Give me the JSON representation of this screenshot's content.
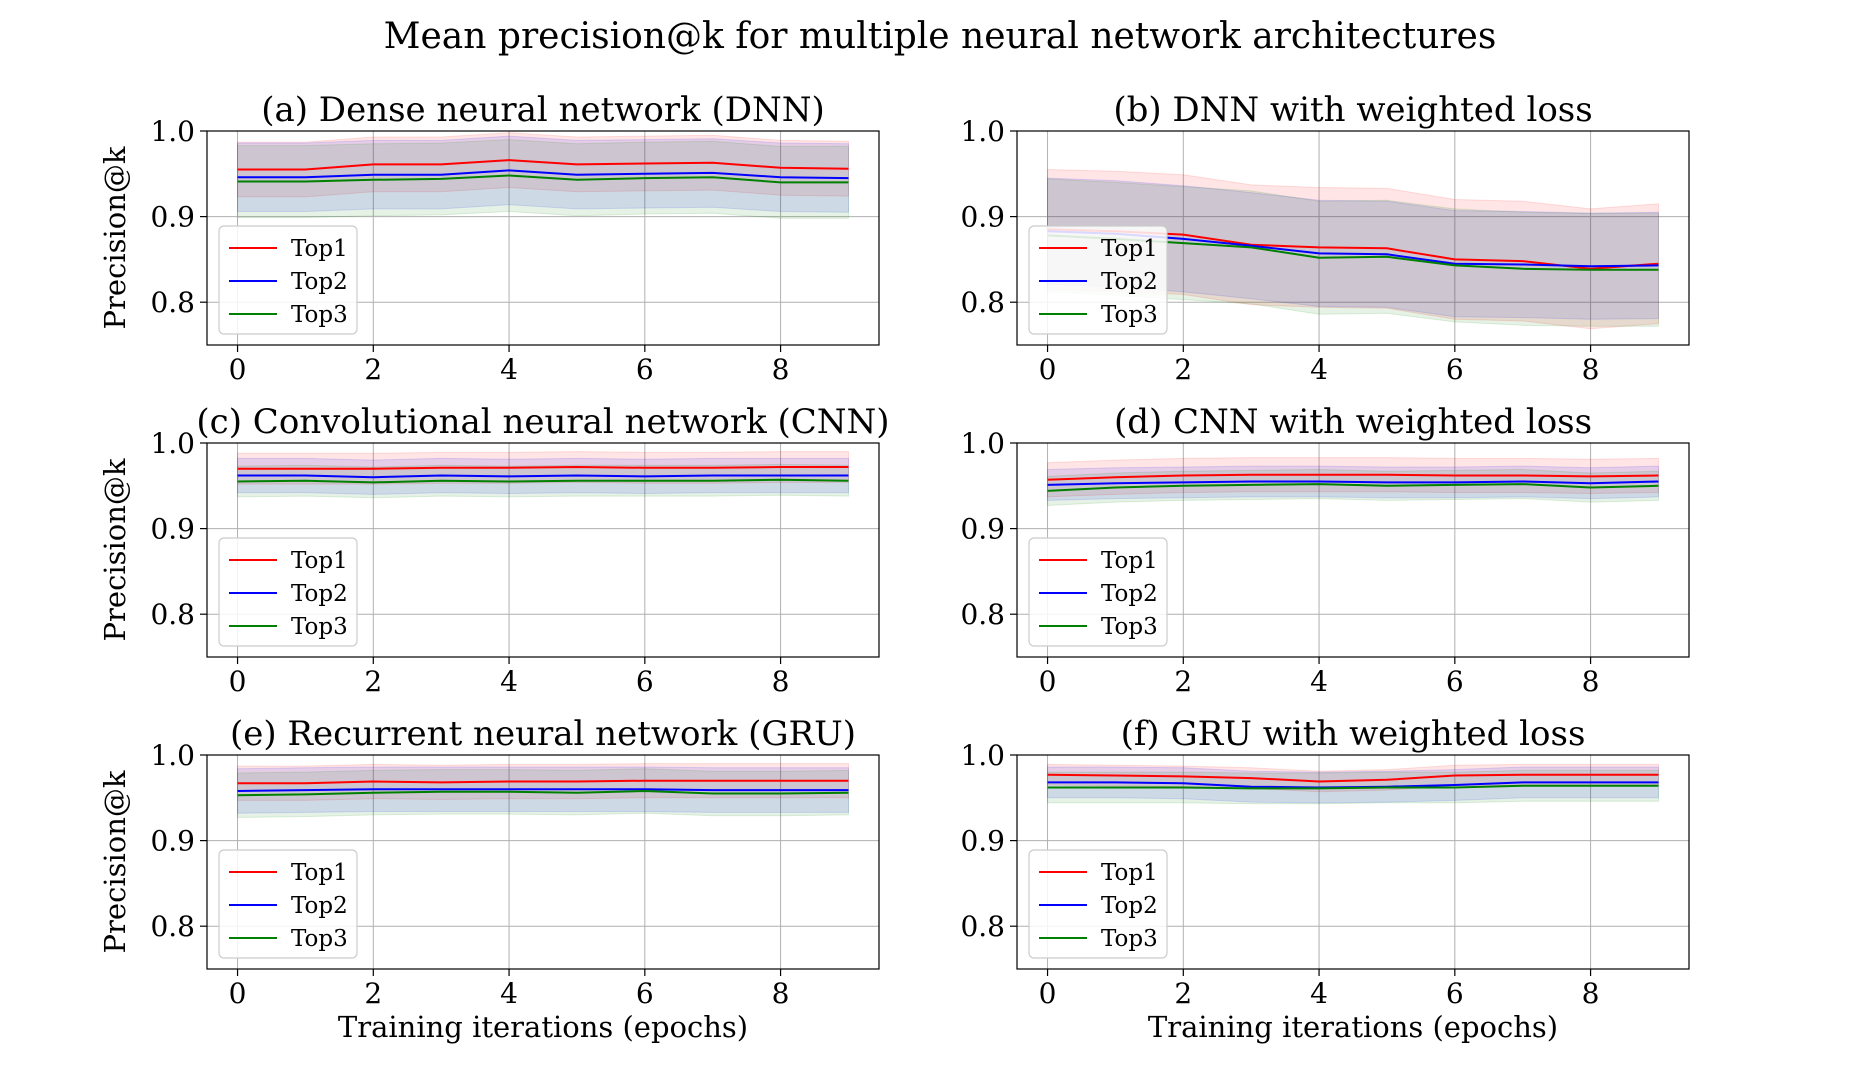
{
  "title": "Mean precision@k for multiple neural network architectures",
  "colors": {
    "Top1": "#ff0000",
    "Top2": "#0000ff",
    "Top3": "#008000",
    "grid": "#b0b0b0"
  },
  "chart_data": [
    {
      "type": "line",
      "title": "(a) Dense neural network (DNN)",
      "xlabel": "",
      "ylabel": "Precision@k",
      "x": [
        0,
        1,
        2,
        3,
        4,
        5,
        6,
        7,
        8,
        9
      ],
      "xticks": [
        "0",
        "2",
        "4",
        "6",
        "8"
      ],
      "yticks": [
        "0.8",
        "0.9",
        "1.0"
      ],
      "xlim": [
        -0.45,
        9.45
      ],
      "ylim": [
        0.75,
        1.0
      ],
      "grid": true,
      "legend": "lower-left",
      "series": [
        {
          "name": "Top1",
          "values": [
            0.955,
            0.955,
            0.961,
            0.961,
            0.966,
            0.961,
            0.962,
            0.963,
            0.957,
            0.956
          ],
          "band": 0.032
        },
        {
          "name": "Top2",
          "values": [
            0.946,
            0.946,
            0.949,
            0.949,
            0.954,
            0.949,
            0.95,
            0.951,
            0.946,
            0.945
          ],
          "band": 0.04
        },
        {
          "name": "Top3",
          "values": [
            0.941,
            0.941,
            0.943,
            0.944,
            0.948,
            0.943,
            0.945,
            0.946,
            0.94,
            0.94
          ],
          "band": 0.042
        }
      ]
    },
    {
      "type": "line",
      "title": "(b) DNN with weighted loss",
      "xlabel": "",
      "ylabel": "",
      "x": [
        0,
        1,
        2,
        3,
        4,
        5,
        6,
        7,
        8,
        9
      ],
      "xticks": [
        "0",
        "2",
        "4",
        "6",
        "8"
      ],
      "yticks": [
        "0.8",
        "0.9",
        "1.0"
      ],
      "xlim": [
        -0.45,
        9.45
      ],
      "ylim": [
        0.75,
        1.0
      ],
      "grid": true,
      "legend": "lower-left",
      "series": [
        {
          "name": "Top1",
          "values": [
            0.885,
            0.883,
            0.879,
            0.867,
            0.864,
            0.863,
            0.85,
            0.848,
            0.839,
            0.845
          ],
          "band": 0.07
        },
        {
          "name": "Top2",
          "values": [
            0.883,
            0.88,
            0.874,
            0.866,
            0.857,
            0.856,
            0.845,
            0.844,
            0.842,
            0.843
          ],
          "band": 0.062
        },
        {
          "name": "Top3",
          "values": [
            0.878,
            0.874,
            0.869,
            0.864,
            0.852,
            0.853,
            0.843,
            0.839,
            0.838,
            0.838
          ],
          "band": 0.066
        }
      ]
    },
    {
      "type": "line",
      "title": "(c) Convolutional neural network (CNN)",
      "xlabel": "",
      "ylabel": "Precision@k",
      "x": [
        0,
        1,
        2,
        3,
        4,
        5,
        6,
        7,
        8,
        9
      ],
      "xticks": [
        "0",
        "2",
        "4",
        "6",
        "8"
      ],
      "yticks": [
        "0.8",
        "0.9",
        "1.0"
      ],
      "xlim": [
        -0.45,
        9.45
      ],
      "ylim": [
        0.75,
        1.0
      ],
      "grid": true,
      "legend": "lower-left",
      "series": [
        {
          "name": "Top1",
          "values": [
            0.97,
            0.97,
            0.97,
            0.971,
            0.971,
            0.972,
            0.971,
            0.971,
            0.972,
            0.972
          ],
          "band": 0.018
        },
        {
          "name": "Top2",
          "values": [
            0.962,
            0.962,
            0.96,
            0.962,
            0.961,
            0.962,
            0.961,
            0.962,
            0.962,
            0.962
          ],
          "band": 0.02
        },
        {
          "name": "Top3",
          "values": [
            0.955,
            0.956,
            0.954,
            0.956,
            0.955,
            0.956,
            0.956,
            0.956,
            0.957,
            0.956
          ],
          "band": 0.018
        }
      ]
    },
    {
      "type": "line",
      "title": "(d) CNN with weighted loss",
      "xlabel": "",
      "ylabel": "",
      "x": [
        0,
        1,
        2,
        3,
        4,
        5,
        6,
        7,
        8,
        9
      ],
      "xticks": [
        "0",
        "2",
        "4",
        "6",
        "8"
      ],
      "yticks": [
        "0.8",
        "0.9",
        "1.0"
      ],
      "xlim": [
        -0.45,
        9.45
      ],
      "ylim": [
        0.75,
        1.0
      ],
      "grid": true,
      "legend": "lower-left",
      "series": [
        {
          "name": "Top1",
          "values": [
            0.957,
            0.96,
            0.962,
            0.963,
            0.963,
            0.963,
            0.962,
            0.962,
            0.961,
            0.962
          ],
          "band": 0.02
        },
        {
          "name": "Top2",
          "values": [
            0.951,
            0.953,
            0.954,
            0.955,
            0.955,
            0.954,
            0.954,
            0.955,
            0.953,
            0.955
          ],
          "band": 0.018
        },
        {
          "name": "Top3",
          "values": [
            0.944,
            0.948,
            0.95,
            0.951,
            0.952,
            0.95,
            0.951,
            0.952,
            0.948,
            0.95
          ],
          "band": 0.017
        }
      ]
    },
    {
      "type": "line",
      "title": "(e) Recurrent neural network (GRU)",
      "xlabel": "Training iterations (epochs)",
      "ylabel": "Precision@k",
      "x": [
        0,
        1,
        2,
        3,
        4,
        5,
        6,
        7,
        8,
        9
      ],
      "xticks": [
        "0",
        "2",
        "4",
        "6",
        "8"
      ],
      "yticks": [
        "0.8",
        "0.9",
        "1.0"
      ],
      "xlim": [
        -0.45,
        9.45
      ],
      "ylim": [
        0.75,
        1.0
      ],
      "grid": true,
      "legend": "lower-left",
      "series": [
        {
          "name": "Top1",
          "values": [
            0.967,
            0.967,
            0.969,
            0.968,
            0.969,
            0.969,
            0.97,
            0.97,
            0.97,
            0.97
          ],
          "band": 0.02
        },
        {
          "name": "Top2",
          "values": [
            0.958,
            0.959,
            0.96,
            0.96,
            0.96,
            0.96,
            0.96,
            0.959,
            0.959,
            0.959
          ],
          "band": 0.026
        },
        {
          "name": "Top3",
          "values": [
            0.953,
            0.954,
            0.956,
            0.957,
            0.957,
            0.956,
            0.958,
            0.955,
            0.955,
            0.956
          ],
          "band": 0.026
        }
      ]
    },
    {
      "type": "line",
      "title": "(f) GRU with weighted loss",
      "xlabel": "Training iterations (epochs)",
      "ylabel": "",
      "x": [
        0,
        1,
        2,
        3,
        4,
        5,
        6,
        7,
        8,
        9
      ],
      "xticks": [
        "0",
        "2",
        "4",
        "6",
        "8"
      ],
      "yticks": [
        "0.8",
        "0.9",
        "1.0"
      ],
      "xlim": [
        -0.45,
        9.45
      ],
      "ylim": [
        0.75,
        1.0
      ],
      "grid": true,
      "legend": "lower-left",
      "series": [
        {
          "name": "Top1",
          "values": [
            0.977,
            0.976,
            0.975,
            0.973,
            0.969,
            0.971,
            0.976,
            0.977,
            0.977,
            0.977
          ],
          "band": 0.012
        },
        {
          "name": "Top2",
          "values": [
            0.968,
            0.968,
            0.967,
            0.963,
            0.962,
            0.963,
            0.965,
            0.968,
            0.968,
            0.968
          ],
          "band": 0.018
        },
        {
          "name": "Top3",
          "values": [
            0.962,
            0.962,
            0.962,
            0.961,
            0.961,
            0.962,
            0.962,
            0.964,
            0.964,
            0.964
          ],
          "band": 0.018
        }
      ]
    }
  ]
}
